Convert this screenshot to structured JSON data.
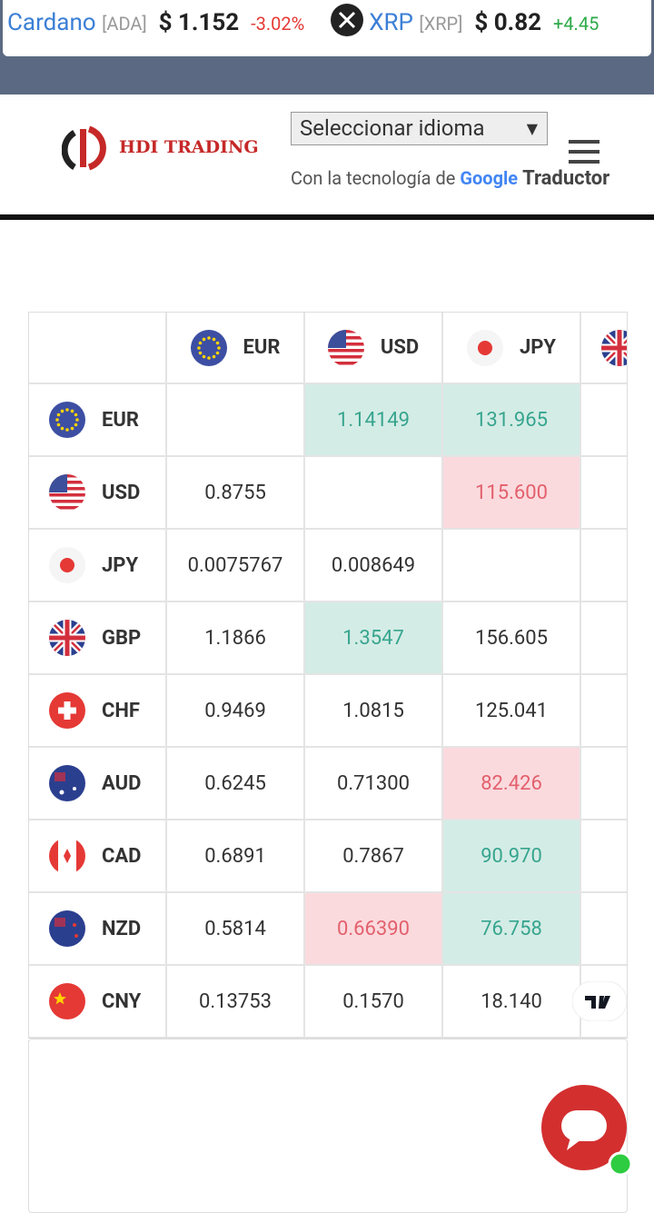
{
  "ticker": [
    {
      "name": "Cardano",
      "symbol": "[ADA]",
      "price": "$ 1.152",
      "change": "-3.02%",
      "direction": "down"
    },
    {
      "name": "XRP",
      "symbol": "[XRP]",
      "price": "$ 0.82",
      "change": "+4.45",
      "direction": "up"
    }
  ],
  "header": {
    "logo": "HDI TRADING",
    "language_select": "Seleccionar idioma",
    "powered_by": "Con la tecnología de",
    "google": "Google",
    "translator": "Traductor"
  },
  "table": {
    "columns": [
      "EUR",
      "USD",
      "JPY"
    ],
    "rows": [
      {
        "label": "EUR",
        "cells": [
          null,
          "1.14149",
          "131.965"
        ],
        "highlight": [
          null,
          "up",
          "up"
        ]
      },
      {
        "label": "USD",
        "cells": [
          "0.8755",
          null,
          "115.600"
        ],
        "highlight": [
          null,
          null,
          "down"
        ]
      },
      {
        "label": "JPY",
        "cells": [
          "0.0075767",
          "0.008649",
          null
        ],
        "highlight": [
          null,
          null,
          null
        ]
      },
      {
        "label": "GBP",
        "cells": [
          "1.1866",
          "1.3547",
          "156.605"
        ],
        "highlight": [
          null,
          "up",
          null
        ]
      },
      {
        "label": "CHF",
        "cells": [
          "0.9469",
          "1.0815",
          "125.041"
        ],
        "highlight": [
          null,
          null,
          null
        ]
      },
      {
        "label": "AUD",
        "cells": [
          "0.6245",
          "0.71300",
          "82.426"
        ],
        "highlight": [
          null,
          null,
          "down"
        ]
      },
      {
        "label": "CAD",
        "cells": [
          "0.6891",
          "0.7867",
          "90.970"
        ],
        "highlight": [
          null,
          null,
          "up"
        ]
      },
      {
        "label": "NZD",
        "cells": [
          "0.5814",
          "0.66390",
          "76.758"
        ],
        "highlight": [
          null,
          "down",
          "up"
        ]
      },
      {
        "label": "CNY",
        "cells": [
          "0.13753",
          "0.1570",
          "18.140"
        ],
        "highlight": [
          null,
          null,
          null
        ]
      }
    ]
  }
}
